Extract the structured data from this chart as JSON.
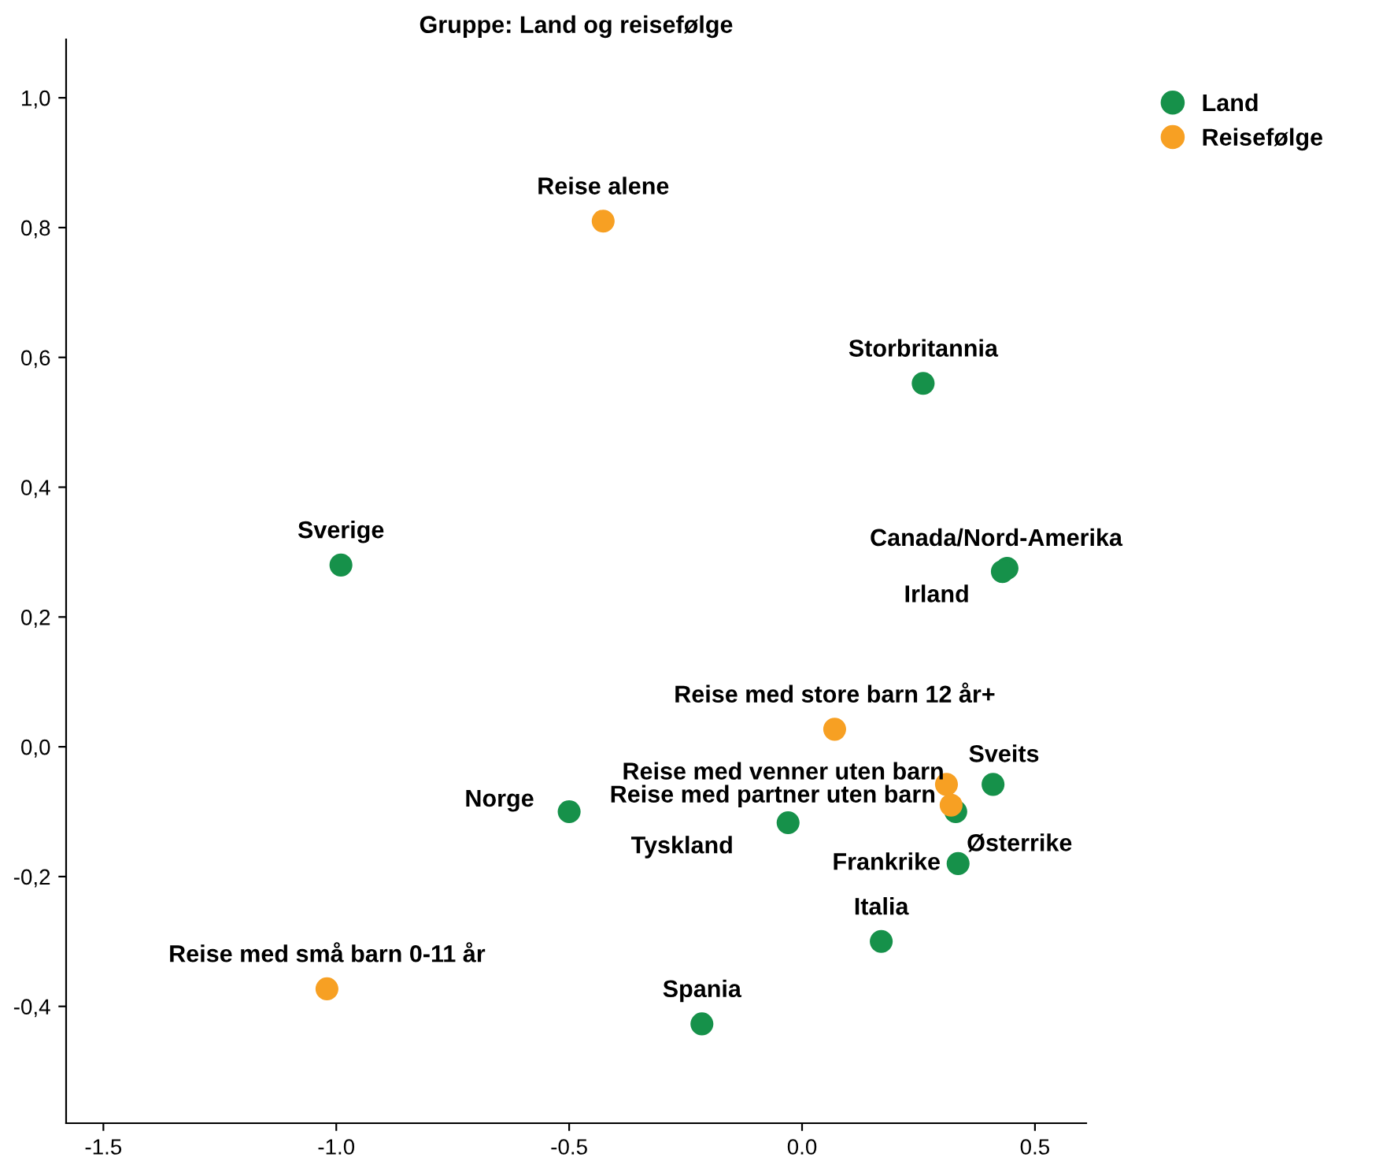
{
  "chart_data": {
    "type": "scatter",
    "title": "Gruppe: Land og reisefølge",
    "series": [
      {
        "name": "Land",
        "color": "#16914a",
        "x": [
          0.26,
          -0.99,
          0.44,
          0.43,
          0.41,
          0.33,
          -0.5,
          -0.03,
          0.335,
          0.17,
          -0.215
        ],
        "values": [
          0.56,
          0.28,
          0.275,
          0.27,
          -0.058,
          -0.1,
          -0.1,
          -0.117,
          -0.18,
          -0.3,
          -0.427
        ]
      },
      {
        "name": "Reisefølge",
        "color": "#f7a023",
        "x": [
          -0.427,
          0.07,
          0.31,
          0.32,
          -1.02
        ],
        "values": [
          0.81,
          0.027,
          -0.058,
          -0.09,
          -0.373
        ]
      }
    ],
    "annotations": [
      {
        "text": "Storbritannia",
        "x": 0.26,
        "y": 0.56
      },
      {
        "text": "Sverige",
        "x": -0.99,
        "y": 0.28
      },
      {
        "text": "Canada/Nord-Amerika",
        "x": 0.44,
        "y": 0.275
      },
      {
        "text": "Irland",
        "x": 0.43,
        "y": 0.27
      },
      {
        "text": "Sveits",
        "x": 0.41,
        "y": -0.058
      },
      {
        "text": "Østerrike",
        "x": 0.33,
        "y": -0.1
      },
      {
        "text": "Norge",
        "x": -0.5,
        "y": -0.1
      },
      {
        "text": "Tyskland",
        "x": -0.03,
        "y": -0.117
      },
      {
        "text": "Frankrike",
        "x": 0.335,
        "y": -0.18
      },
      {
        "text": "Italia",
        "x": 0.17,
        "y": -0.3
      },
      {
        "text": "Spania",
        "x": -0.215,
        "y": -0.427
      },
      {
        "text": "Reise alene",
        "x": -0.427,
        "y": 0.81
      },
      {
        "text": "Reise med store barn 12 år+",
        "x": 0.07,
        "y": 0.027
      },
      {
        "text": "Reise med venner uten barn",
        "x": 0.31,
        "y": -0.058
      },
      {
        "text": "Reise med partner uten barn",
        "x": 0.32,
        "y": -0.09
      },
      {
        "text": "Reise med små barn 0-11 år",
        "x": -1.02,
        "y": -0.373
      }
    ],
    "xlim": [
      -1.58,
      0.61
    ],
    "ylim": [
      -0.58,
      1.09
    ],
    "xticks": [
      {
        "value": -1.5,
        "label": "-1.5"
      },
      {
        "value": -1.0,
        "label": "-1.0"
      },
      {
        "value": -0.5,
        "label": "-0.5"
      },
      {
        "value": 0.0,
        "label": "0.0"
      },
      {
        "value": 0.5,
        "label": "0.5"
      }
    ],
    "yticks": [
      {
        "value": -0.4,
        "label": "-0,4"
      },
      {
        "value": -0.2,
        "label": "-0,2"
      },
      {
        "value": 0.0,
        "label": "0,0"
      },
      {
        "value": 0.2,
        "label": "0,2"
      },
      {
        "value": 0.4,
        "label": "0,4"
      },
      {
        "value": 0.6,
        "label": "0,6"
      },
      {
        "value": 0.8,
        "label": "0,8"
      },
      {
        "value": 1.0,
        "label": "1,0"
      }
    ],
    "grid": false,
    "legend": "top right",
    "marker": "circle"
  }
}
